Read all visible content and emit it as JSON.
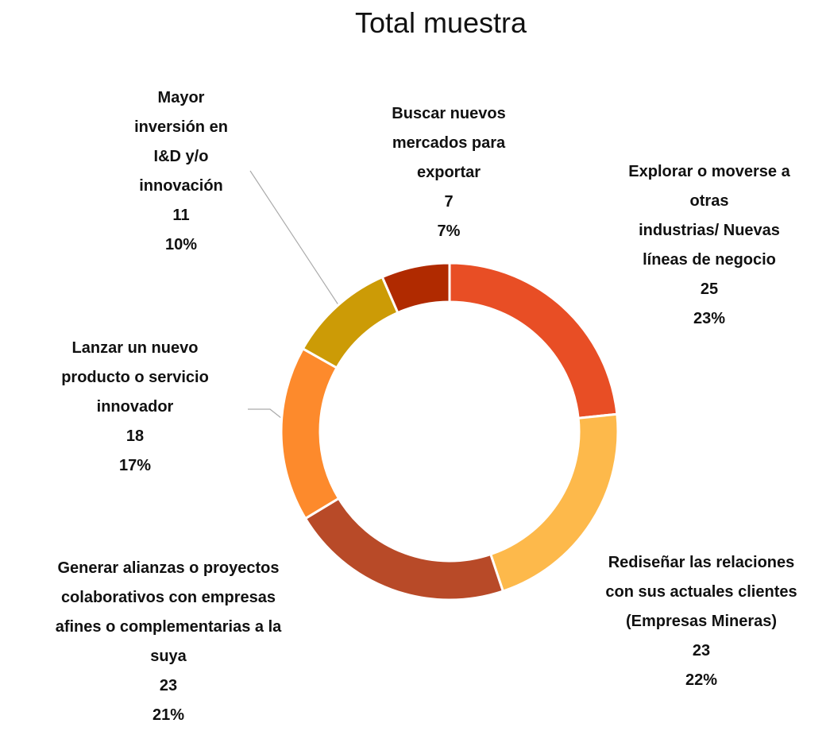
{
  "chart_data": {
    "type": "donut",
    "title": "Total muestra",
    "categories": [
      "Explorar o moverse a\notras\nindustrias/  Nuevas\nlíneas de negocio",
      "Rediseñar las relaciones\ncon sus actuales clientes\n(Empresas Mineras)",
      "Generar alianzas o proyectos\ncolaborativos con empresas\nafines o complementarias a la\nsuya",
      "Lanzar un nuevo\nproducto o servicio\ninnovador",
      "Mayor\ninversión en\nI&D y/o\ninnovación",
      "Buscar nuevos\nmercados para\nexportar"
    ],
    "values": [
      25,
      23,
      23,
      18,
      11,
      7
    ],
    "percent_labels": [
      "23%",
      "22%",
      "21%",
      "17%",
      "10%",
      "7%"
    ],
    "colors": [
      "#e84e25",
      "#fdb94b",
      "#b84a28",
      "#fd8a2c",
      "#cc9b06",
      "#b02a00"
    ]
  }
}
